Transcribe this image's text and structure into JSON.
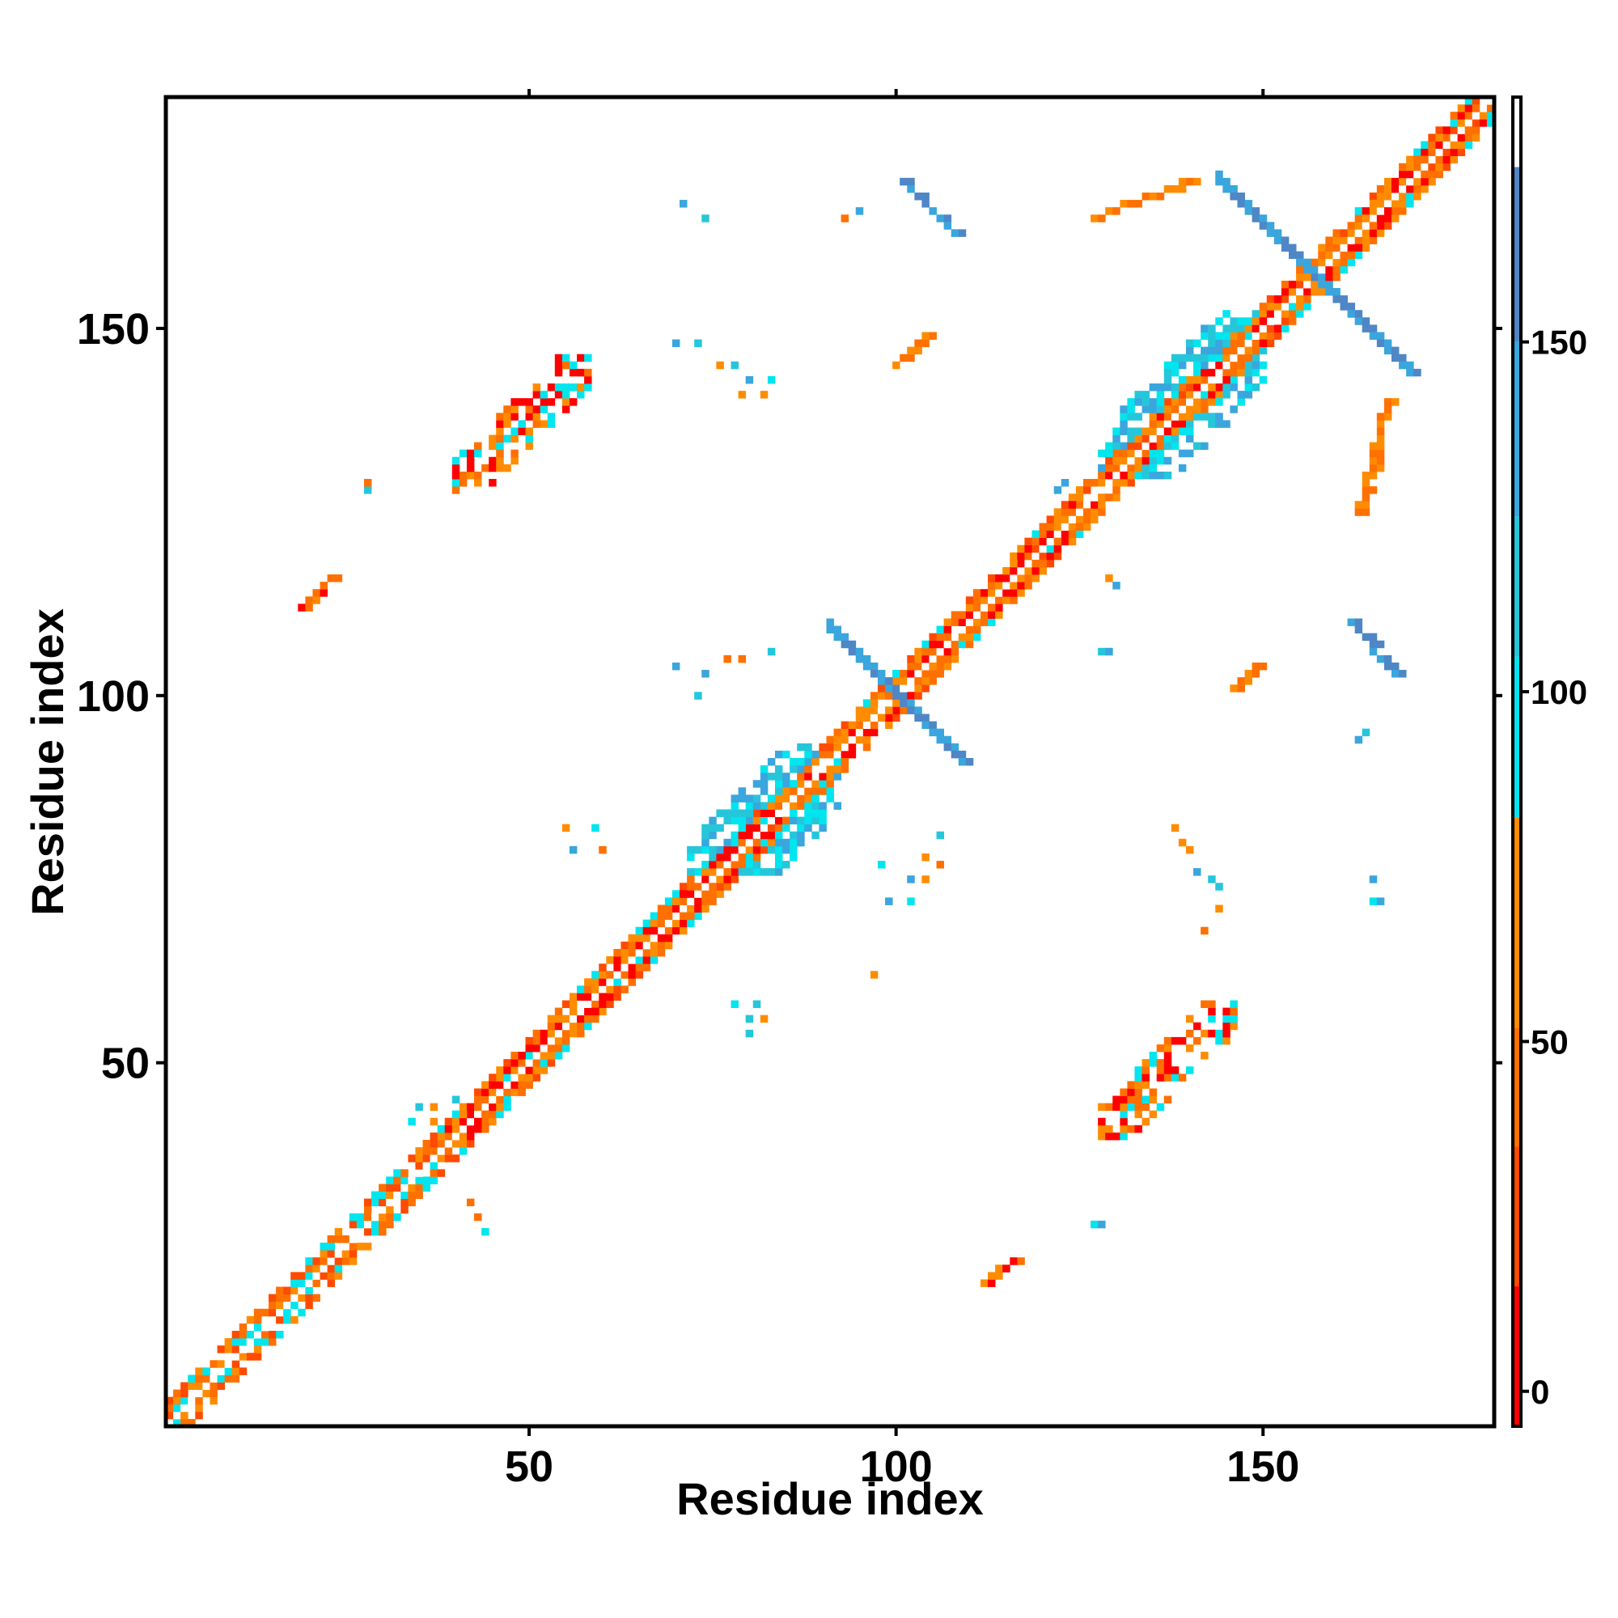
{
  "chart_data": {
    "type": "heatmap",
    "title": "",
    "xlabel": "Residue index",
    "ylabel": "Residue index",
    "xlim": [
      1,
      181
    ],
    "ylim": [
      1,
      181
    ],
    "x_ticks": [
      50,
      100,
      150
    ],
    "y_ticks": [
      50,
      100,
      150
    ],
    "grid": false,
    "legend": "colorbar-right",
    "colorbar": {
      "range": [
        -5,
        185
      ],
      "ticks": [
        0,
        50,
        100,
        150
      ],
      "bands": [
        {
          "from": -5,
          "to": 15,
          "color": "#ff0000"
        },
        {
          "from": 15,
          "to": 35,
          "color": "#ff4a00"
        },
        {
          "from": 35,
          "to": 52,
          "color": "#ff7000"
        },
        {
          "from": 52,
          "to": 82,
          "color": "#ff8c00"
        },
        {
          "from": 82,
          "to": 105,
          "color": "#00e5ee"
        },
        {
          "from": 105,
          "to": 125,
          "color": "#26c6da"
        },
        {
          "from": 125,
          "to": 150,
          "color": "#3aa6dd"
        },
        {
          "from": 150,
          "to": 175,
          "color": "#4f86c6"
        },
        {
          "from": 175,
          "to": 185,
          "color": "#ffffff"
        }
      ]
    },
    "regions": [
      {
        "kind": "diag_band",
        "start": 1,
        "end": 181,
        "width": 3,
        "colors": [
          "#ff4a00",
          "#ff8c00",
          "#ff7000",
          "#00e5ee"
        ],
        "note": "main diagonal contacts"
      },
      {
        "kind": "diag_band",
        "start": 40,
        "end": 180,
        "width": 2,
        "colors": [
          "#ff0000",
          "#ff7000",
          "#ff8c00"
        ]
      },
      {
        "kind": "block",
        "x": [
          72,
          92
        ],
        "y": [
          76,
          93
        ],
        "colors": [
          "#00e5ee",
          "#26c6da",
          "#3aa6dd"
        ]
      },
      {
        "kind": "block",
        "x": [
          128,
          150
        ],
        "y": [
          130,
          152
        ],
        "colors": [
          "#00e5ee",
          "#26c6da",
          "#3aa6dd"
        ]
      },
      {
        "kind": "anti",
        "center": [
          100,
          100
        ],
        "half": 9,
        "colors": [
          "#3aa6dd",
          "#4f86c6"
        ]
      },
      {
        "kind": "anti",
        "center": [
          157,
          157
        ],
        "half": 13,
        "colors": [
          "#3aa6dd",
          "#4f86c6"
        ]
      },
      {
        "kind": "diag_patch",
        "x": [
          40,
          58
        ],
        "y": [
          128,
          146
        ],
        "colors": [
          "#ff7000",
          "#ff8c00",
          "#00e5ee",
          "#ff0000"
        ]
      },
      {
        "kind": "diag_patch",
        "x": [
          128,
          146
        ],
        "y": [
          40,
          58
        ],
        "colors": [
          "#ff7000",
          "#ff8c00",
          "#00e5ee",
          "#ff0000"
        ]
      },
      {
        "kind": "segment",
        "from": [
          101,
          170
        ],
        "to": [
          108,
          163
        ],
        "colors": [
          "#3aa6dd",
          "#4f86c6"
        ]
      },
      {
        "kind": "segment",
        "from": [
          162,
          110
        ],
        "to": [
          168,
          103
        ],
        "colors": [
          "#3aa6dd",
          "#4f86c6"
        ]
      },
      {
        "kind": "segment",
        "from": [
          100,
          145
        ],
        "to": [
          104,
          149
        ],
        "colors": [
          "#ff7000",
          "#ff8c00"
        ]
      },
      {
        "kind": "segment",
        "from": [
          146,
          101
        ],
        "to": [
          149,
          104
        ],
        "colors": [
          "#ff7000",
          "#ff8c00"
        ]
      },
      {
        "kind": "segment",
        "from": [
          127,
          165
        ],
        "to": [
          140,
          170
        ],
        "colors": [
          "#ff7000",
          "#ff8c00"
        ]
      },
      {
        "kind": "segment",
        "from": [
          163,
          125
        ],
        "to": [
          167,
          140
        ],
        "colors": [
          "#ff7000",
          "#ff8c00"
        ]
      },
      {
        "kind": "segment",
        "from": [
          19,
          112
        ],
        "to": [
          23,
          116
        ],
        "colors": [
          "#ff7000",
          "#ff0000",
          "#ff8c00"
        ]
      },
      {
        "kind": "segment",
        "from": [
          112,
          20
        ],
        "to": [
          116,
          23
        ],
        "colors": [
          "#ff7000",
          "#ff0000",
          "#ff8c00"
        ]
      },
      {
        "kind": "scatter",
        "points": [
          [
            71,
            167
          ],
          [
            74,
            165
          ],
          [
            28,
            128
          ],
          [
            28,
            129
          ],
          [
            95,
            166
          ],
          [
            93,
            165
          ],
          [
            70,
            148
          ],
          [
            73,
            148
          ],
          [
            76,
            145
          ],
          [
            78,
            145
          ],
          [
            80,
            143
          ],
          [
            83,
            143
          ],
          [
            79,
            141
          ],
          [
            82,
            141
          ],
          [
            122,
            128
          ],
          [
            123,
            129
          ],
          [
            129,
            116
          ],
          [
            130,
            115
          ],
          [
            70,
            104
          ],
          [
            74,
            103
          ],
          [
            77,
            105
          ],
          [
            79,
            105
          ],
          [
            83,
            106
          ],
          [
            73,
            100
          ],
          [
            55,
            82
          ],
          [
            59,
            82
          ],
          [
            56,
            79
          ],
          [
            60,
            79
          ],
          [
            78,
            58
          ],
          [
            81,
            58
          ],
          [
            80,
            56
          ],
          [
            82,
            56
          ],
          [
            80,
            54
          ],
          [
            106,
            81
          ],
          [
            104,
            78
          ],
          [
            106,
            77
          ],
          [
            102,
            75
          ],
          [
            104,
            75
          ],
          [
            102,
            72
          ],
          [
            138,
            82
          ],
          [
            139,
            80
          ],
          [
            140,
            79
          ],
          [
            141,
            76
          ],
          [
            143,
            75
          ],
          [
            144,
            74
          ],
          [
            144,
            71
          ],
          [
            142,
            68
          ],
          [
            165,
            75
          ],
          [
            165,
            72
          ],
          [
            166,
            72
          ],
          [
            164,
            95
          ],
          [
            163,
            94
          ],
          [
            35,
            44
          ],
          [
            37,
            44
          ],
          [
            40,
            45
          ],
          [
            34,
            42
          ],
          [
            37,
            42
          ],
          [
            42,
            31
          ],
          [
            43,
            29
          ],
          [
            44,
            27
          ],
          [
            127,
            28
          ],
          [
            128,
            28
          ],
          [
            97,
            62
          ],
          [
            99,
            72
          ],
          [
            98,
            77
          ],
          [
            128,
            106
          ],
          [
            129,
            106
          ]
        ],
        "colors": [
          "#00e5ee",
          "#26c6da",
          "#ff7000",
          "#ff8c00",
          "#3aa6dd"
        ]
      }
    ]
  }
}
